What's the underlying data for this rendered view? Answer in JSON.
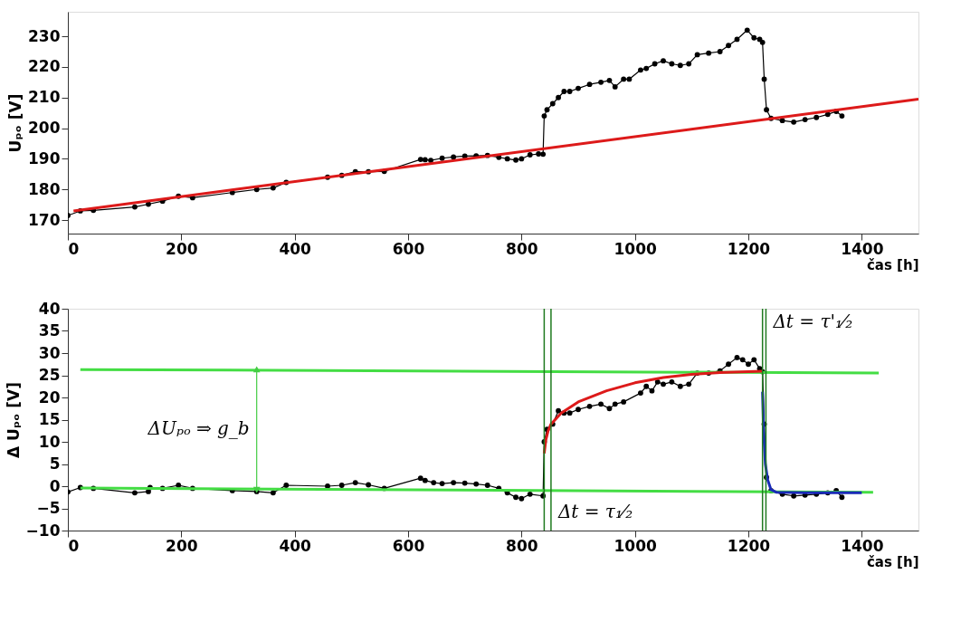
{
  "chart_data": [
    {
      "type": "line",
      "xlabel": "čas [h]",
      "ylabel": "Uₚₒ [V]",
      "xlim": [
        0,
        1500
      ],
      "ylim": [
        165.6,
        238
      ],
      "xticks": [
        0,
        200,
        400,
        600,
        800,
        1000,
        1200,
        1400
      ],
      "yticks": [
        170,
        180,
        190,
        200,
        210,
        220,
        230
      ],
      "grid": false,
      "series": [
        {
          "color": "#000000",
          "marker": "circle",
          "x": [
            0,
            22,
            45,
            118,
            142,
            167,
            195,
            220,
            290,
            333,
            362,
            385,
            458,
            483,
            507,
            530,
            558,
            622,
            630,
            640,
            660,
            680,
            700,
            720,
            740,
            760,
            775,
            790,
            800,
            815,
            830,
            838,
            840,
            845,
            855,
            865,
            875,
            885,
            900,
            920,
            940,
            955,
            965,
            980,
            990,
            1010,
            1020,
            1035,
            1050,
            1065,
            1080,
            1095,
            1110,
            1130,
            1150,
            1165,
            1180,
            1198,
            1210,
            1220,
            1225,
            1228,
            1232,
            1240,
            1260,
            1280,
            1300,
            1320,
            1340,
            1355,
            1365
          ],
          "values": [
            171.5,
            173,
            173.2,
            174.3,
            175.2,
            176.2,
            177.8,
            177.3,
            179,
            180,
            180.5,
            182.3,
            184,
            184.6,
            185.8,
            185.8,
            185.9,
            189.8,
            189.7,
            189.5,
            190.2,
            190.6,
            190.9,
            191,
            191.1,
            190.5,
            190,
            189.6,
            190,
            191.3,
            191.6,
            191.5,
            204,
            206,
            208,
            210,
            212,
            212,
            213,
            214.3,
            215,
            215.6,
            213.5,
            216,
            216,
            219,
            219.5,
            221,
            222,
            221,
            220.5,
            221,
            224,
            224.5,
            225,
            227,
            229,
            232,
            229.5,
            229,
            228,
            216,
            206,
            203.2,
            202.5,
            202,
            202.8,
            203.5,
            204.5,
            205.5,
            204
          ]
        },
        {
          "color": "#dd1a1a",
          "marker": "none",
          "x": [
            10,
            1500
          ],
          "values": [
            173,
            209.5
          ]
        }
      ]
    },
    {
      "type": "line",
      "xlabel": "čas [h]",
      "ylabel": "Δ Uₚₒ [V]",
      "xlim": [
        0,
        1500
      ],
      "ylim": [
        -10,
        40
      ],
      "xticks": [
        0,
        200,
        400,
        600,
        800,
        1000,
        1200,
        1400
      ],
      "yticks": [
        -10,
        -5,
        0,
        5,
        10,
        15,
        20,
        25,
        30,
        35,
        40
      ],
      "grid": false,
      "series": [
        {
          "color": "#000000",
          "marker": "circle",
          "x": [
            0,
            22,
            45,
            118,
            142,
            145,
            167,
            195,
            220,
            290,
            333,
            362,
            385,
            458,
            483,
            507,
            530,
            558,
            622,
            630,
            645,
            660,
            680,
            700,
            720,
            740,
            760,
            775,
            790,
            800,
            815,
            838,
            840,
            845,
            855,
            865,
            875,
            885,
            900,
            920,
            940,
            955,
            965,
            980,
            1010,
            1020,
            1030,
            1040,
            1050,
            1065,
            1080,
            1095,
            1110,
            1130,
            1150,
            1165,
            1180,
            1190,
            1200,
            1210,
            1220,
            1225,
            1228,
            1232,
            1240,
            1260,
            1280,
            1300,
            1320,
            1340,
            1355,
            1365
          ],
          "values": [
            -1.3,
            -0.3,
            -0.5,
            -1.5,
            -1.2,
            -0.3,
            -0.5,
            0.2,
            -0.5,
            -1,
            -1.2,
            -1.5,
            0.2,
            0,
            0.2,
            0.8,
            0.3,
            -0.5,
            1.8,
            1.3,
            0.8,
            0.6,
            0.8,
            0.7,
            0.5,
            0.2,
            -0.5,
            -1.5,
            -2.5,
            -2.8,
            -1.8,
            -2.2,
            10,
            12.8,
            14,
            17,
            16.5,
            16.5,
            17.3,
            18,
            18.5,
            17.5,
            18.5,
            19,
            21,
            22.5,
            21.5,
            23.5,
            23,
            23.5,
            22.5,
            23,
            25.5,
            25.5,
            26,
            27.5,
            29,
            28.5,
            27.5,
            28.5,
            26.5,
            25.8,
            14,
            2,
            -1,
            -1.8,
            -2.2,
            -2,
            -1.8,
            -1.5,
            -1,
            -2.5
          ]
        },
        {
          "color": "#44dd44",
          "marker": "none",
          "x": [
            22,
            1430
          ],
          "values": [
            26.3,
            25.5
          ]
        },
        {
          "color": "#44dd44",
          "marker": "none",
          "x": [
            22,
            1420
          ],
          "values": [
            -0.4,
            -1.4
          ]
        },
        {
          "color": "#dd1a1a",
          "marker": "none",
          "x": [
            840,
            843,
            847,
            852,
            870,
            900,
            950,
            1000,
            1050,
            1100,
            1150,
            1200,
            1225
          ],
          "values": [
            7.4,
            10.5,
            12.5,
            14,
            16.5,
            19,
            21.5,
            23.3,
            24.5,
            25.2,
            25.6,
            25.8,
            25.9
          ]
        },
        {
          "color": "#1a2ab8",
          "marker": "none",
          "x": [
            1225,
            1227,
            1230,
            1234,
            1240,
            1250,
            1300,
            1400
          ],
          "values": [
            21.3,
            12,
            5,
            1.5,
            -0.8,
            -1.4,
            -1.5,
            -1.5
          ]
        }
      ],
      "ref_lines": [
        {
          "axis": "x",
          "value": 840,
          "label": null,
          "color": "#1f7a1f"
        },
        {
          "axis": "x",
          "value": 852,
          "label": null,
          "color": "#1f7a1f"
        },
        {
          "axis": "x",
          "value": 1225,
          "label": null,
          "color": "#1f7a1f"
        },
        {
          "axis": "x",
          "value": 1231,
          "label": null,
          "color": "#1f7a1f"
        }
      ],
      "annotations": [
        {
          "text": "ΔUₚₒ ⇒ g_b",
          "x": 333,
          "y": -0.6
        },
        {
          "text": "Δt = τ₁⁄₂",
          "x": 852,
          "y": -6
        },
        {
          "text": "Δt = τ'₁⁄₂",
          "x": 1231,
          "y": 37
        }
      ]
    }
  ]
}
